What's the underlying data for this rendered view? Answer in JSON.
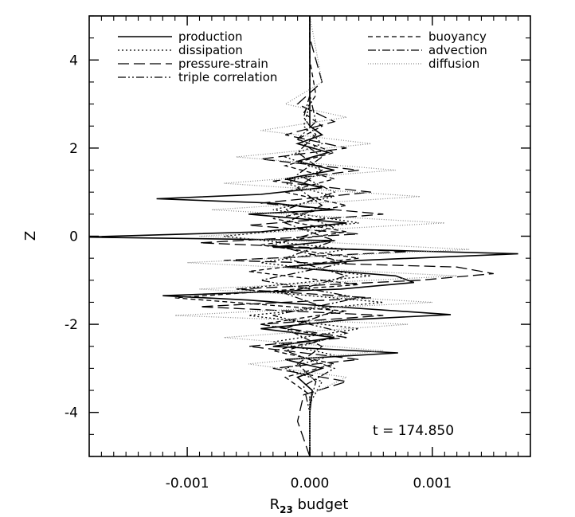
{
  "chart_data": {
    "type": "line",
    "orientation": "vertical-profile",
    "title": "",
    "xlabel_main": "R",
    "xlabel_sub": "23",
    "xlabel_rest": " budget",
    "ylabel": "Z",
    "xlim": [
      -0.0018,
      0.0018
    ],
    "ylim": [
      -5,
      5
    ],
    "xticks": [
      -0.001,
      0.0,
      0.001
    ],
    "xtick_labels": [
      "-0.001",
      "0.000",
      "0.001"
    ],
    "yticks": [
      -4,
      -2,
      0,
      2,
      4
    ],
    "ytick_labels": [
      "-4",
      "-2",
      "0",
      "2",
      "4"
    ],
    "grid": false,
    "legend_position": "top",
    "annotation": "t = 174.850",
    "legend": [
      {
        "name": "production",
        "style": "solid"
      },
      {
        "name": "dissipation",
        "style": "dotted"
      },
      {
        "name": "pressure-strain",
        "style": "long-dash"
      },
      {
        "name": "triple correlation",
        "style": "dash-dot-dot"
      },
      {
        "name": "buoyancy",
        "style": "dashed"
      },
      {
        "name": "advection",
        "style": "dash-dot"
      },
      {
        "name": "diffusion",
        "style": "fine-dotted"
      }
    ],
    "series": [
      {
        "name": "production",
        "style": "solid",
        "z": [
          -5.0,
          -4.0,
          -3.5,
          -3.2,
          -3.0,
          -2.8,
          -2.65,
          -2.5,
          -2.3,
          -2.1,
          -1.9,
          -1.78,
          -1.6,
          -1.45,
          -1.35,
          -1.2,
          -1.05,
          -0.9,
          -0.7,
          -0.55,
          -0.4,
          -0.25,
          -0.1,
          -0.02,
          0.1,
          0.3,
          0.5,
          0.6,
          0.75,
          0.85,
          0.95,
          1.1,
          1.3,
          1.5,
          1.7,
          1.9,
          2.1,
          2.3,
          2.5,
          3.0,
          4.0,
          5.0
        ],
        "x": [
          0.0,
          0.0,
          2e-05,
          -0.0001,
          0.0001,
          -0.0002,
          0.00072,
          -0.0003,
          0.0002,
          -0.0004,
          0.0003,
          0.00115,
          0.0002,
          -0.0005,
          -0.0012,
          0.00025,
          0.00085,
          0.0007,
          -0.0002,
          0.0004,
          0.0017,
          -0.0003,
          0.0002,
          -0.00185,
          -0.0004,
          0.0003,
          -0.0005,
          0.0002,
          -0.0003,
          -0.00125,
          -0.0004,
          0.0001,
          -0.0002,
          0.0002,
          -0.0001,
          0.00015,
          -0.0001,
          0.0001,
          0.0,
          0.0,
          0.0,
          0.0
        ]
      },
      {
        "name": "dissipation",
        "style": "dotted",
        "z": [
          -5.0,
          -3.8,
          -3.3,
          -3.0,
          -2.7,
          -2.4,
          -2.1,
          -1.8,
          -1.5,
          -1.2,
          -0.9,
          -0.6,
          -0.3,
          0.0,
          0.3,
          0.6,
          0.9,
          1.2,
          1.5,
          1.8,
          2.1,
          2.5,
          3.0,
          4.0,
          5.0
        ],
        "x": [
          0.0,
          0.0,
          0.0001,
          -0.0002,
          0.0002,
          -0.0003,
          0.0004,
          -0.0005,
          0.0006,
          -0.0006,
          0.0005,
          -0.0004,
          0.0003,
          -0.0007,
          0.0004,
          -0.0003,
          0.0002,
          -0.0002,
          0.0001,
          -0.0002,
          0.0001,
          -5e-05,
          0.0,
          0.0,
          0.0
        ]
      },
      {
        "name": "pressure-strain",
        "style": "long-dash",
        "z": [
          -5.0,
          -4.2,
          -3.6,
          -3.3,
          -3.0,
          -2.8,
          -2.5,
          -2.3,
          -2.0,
          -1.8,
          -1.6,
          -1.4,
          -1.2,
          -1.0,
          -0.85,
          -0.7,
          -0.55,
          -0.35,
          -0.15,
          0.05,
          0.25,
          0.5,
          0.75,
          1.0,
          1.25,
          1.5,
          1.75,
          2.0,
          2.3,
          2.6,
          3.0,
          3.5,
          4.0,
          4.5,
          5.0
        ],
        "x": [
          0.0,
          -0.0001,
          -5e-05,
          0.0003,
          -0.0003,
          0.0004,
          -0.0005,
          0.0003,
          -0.0004,
          0.0006,
          -0.0009,
          0.0005,
          -0.0006,
          0.0009,
          0.0015,
          0.0012,
          -0.0007,
          0.0008,
          -0.0009,
          0.0004,
          -0.0005,
          0.0006,
          -0.0004,
          0.0005,
          -0.0003,
          0.0004,
          -0.0004,
          0.0003,
          -0.0002,
          0.0002,
          -0.0001,
          0.0001,
          5e-05,
          0.0,
          0.0
        ]
      },
      {
        "name": "triple correlation",
        "style": "dash-dot-dot",
        "z": [
          -5.0,
          -4.0,
          -3.4,
          -3.0,
          -2.6,
          -2.2,
          -1.8,
          -1.4,
          -1.0,
          -0.6,
          -0.2,
          0.2,
          0.6,
          1.0,
          1.4,
          1.8,
          2.2,
          2.6,
          3.2,
          4.0,
          5.0
        ],
        "x": [
          0.0,
          0.0,
          -5e-05,
          0.0002,
          -0.0002,
          0.0003,
          -0.0003,
          0.0004,
          -0.0004,
          0.0003,
          -0.0003,
          0.0002,
          -0.0002,
          0.0002,
          -0.0001,
          0.0001,
          -0.0001,
          5e-05,
          0.0,
          0.0,
          0.0
        ]
      },
      {
        "name": "buoyancy",
        "style": "dashed",
        "z": [
          -5.0,
          -3.6,
          -3.2,
          -2.9,
          -2.6,
          -2.3,
          -2.0,
          -1.7,
          -1.4,
          -1.1,
          -0.8,
          -0.5,
          -0.2,
          0.1,
          0.4,
          0.7,
          1.0,
          1.3,
          1.6,
          1.9,
          2.2,
          2.5,
          2.8,
          3.2,
          4.0,
          5.0
        ],
        "x": [
          0.0,
          0.0,
          -0.0002,
          0.0002,
          -0.0003,
          0.0002,
          -0.0004,
          0.0003,
          -0.0011,
          0.0004,
          -0.0005,
          0.0004,
          -0.0004,
          0.0003,
          -0.0003,
          0.0003,
          -0.0002,
          0.0002,
          -0.0002,
          0.0002,
          -0.0001,
          0.0001,
          -5e-05,
          5e-05,
          0.0,
          0.0
        ]
      },
      {
        "name": "advection",
        "style": "dash-dot",
        "z": [
          -5.0,
          -3.8,
          -3.3,
          -2.9,
          -2.5,
          -2.1,
          -1.7,
          -1.3,
          -0.9,
          -0.5,
          -0.1,
          0.3,
          0.7,
          1.1,
          1.5,
          1.9,
          2.3,
          2.7,
          3.2,
          4.0,
          5.0
        ],
        "x": [
          0.0,
          0.0,
          5e-05,
          -0.0001,
          0.0001,
          -0.0002,
          0.0002,
          -0.0002,
          0.0003,
          -0.0002,
          0.0002,
          -0.0002,
          0.0001,
          -0.0001,
          0.0001,
          -0.0001,
          5e-05,
          -5e-05,
          0.0,
          0.0,
          0.0
        ]
      },
      {
        "name": "diffusion",
        "style": "fine-dotted",
        "z": [
          -5.0,
          -3.6,
          -3.2,
          -2.9,
          -2.6,
          -2.3,
          -2.0,
          -1.8,
          -1.5,
          -1.2,
          -0.9,
          -0.6,
          -0.3,
          0.0,
          0.3,
          0.6,
          0.9,
          1.2,
          1.5,
          1.8,
          2.1,
          2.4,
          2.7,
          3.0,
          3.5,
          5.0
        ],
        "x": [
          0.0,
          0.0,
          0.0003,
          -0.0005,
          0.0006,
          -0.0007,
          0.0008,
          -0.0011,
          0.001,
          -0.0009,
          0.0012,
          -0.001,
          0.0013,
          -0.0009,
          0.0011,
          -0.0008,
          0.0009,
          -0.0007,
          0.0007,
          -0.0006,
          0.0005,
          -0.0004,
          0.0003,
          -0.0002,
          0.0001,
          0.0
        ]
      }
    ]
  }
}
